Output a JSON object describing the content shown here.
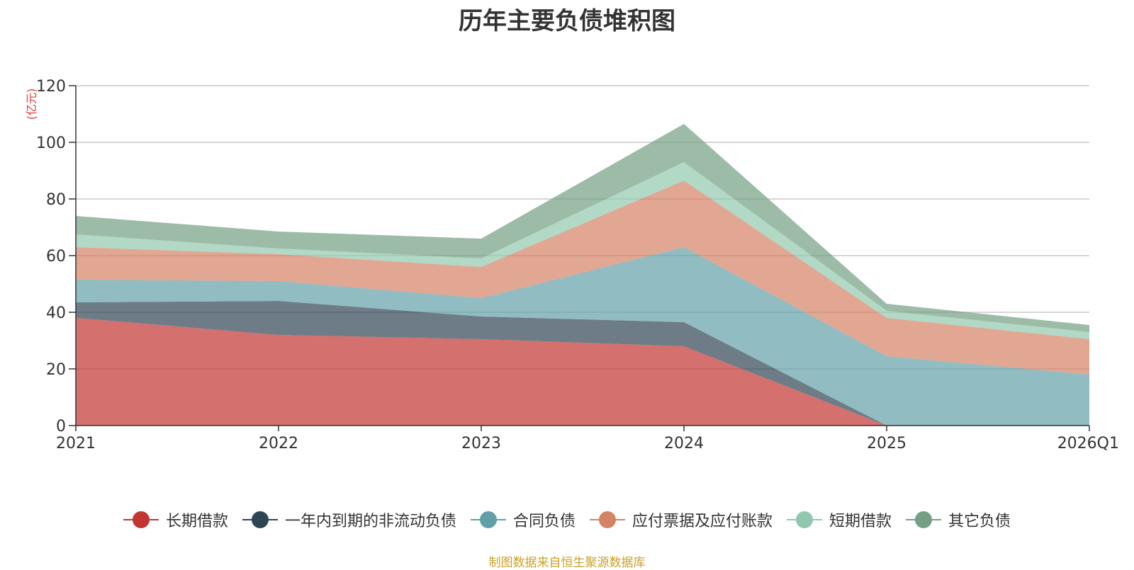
{
  "chart_data": {
    "type": "area",
    "stacked": true,
    "title": "历年主要负债堆积图",
    "ylabel": "(亿元)",
    "xlabel": "",
    "ylim": [
      0,
      120
    ],
    "yticks": [
      0,
      20,
      40,
      60,
      80,
      100,
      120
    ],
    "grid": true,
    "legend_position": "bottom",
    "categories": [
      "2021",
      "2022",
      "2023",
      "2024",
      "2025",
      "2026Q1"
    ],
    "series": [
      {
        "name": "长期借款",
        "color": "#c23531",
        "values": [
          38.0,
          32.0,
          30.5,
          28.0,
          0.0,
          0.0
        ]
      },
      {
        "name": "一年内到期的非流动负债",
        "color": "#2f4554",
        "values": [
          5.5,
          12.0,
          8.0,
          8.5,
          0.0,
          0.0
        ]
      },
      {
        "name": "合同负债",
        "color": "#61a0a8",
        "values": [
          8.0,
          7.0,
          6.5,
          26.5,
          24.5,
          18.0
        ]
      },
      {
        "name": "应付票据及应付账款",
        "color": "#d48265",
        "values": [
          11.5,
          9.5,
          11.0,
          23.5,
          13.5,
          12.5
        ]
      },
      {
        "name": "短期借款",
        "color": "#91c7ae",
        "values": [
          4.5,
          2.0,
          3.0,
          6.5,
          2.5,
          2.5
        ]
      },
      {
        "name": "其它负债",
        "color": "#749f83",
        "values": [
          6.5,
          6.0,
          7.0,
          13.5,
          2.5,
          2.5
        ]
      }
    ]
  },
  "source_note": "制图数据来自恒生聚源数据库"
}
